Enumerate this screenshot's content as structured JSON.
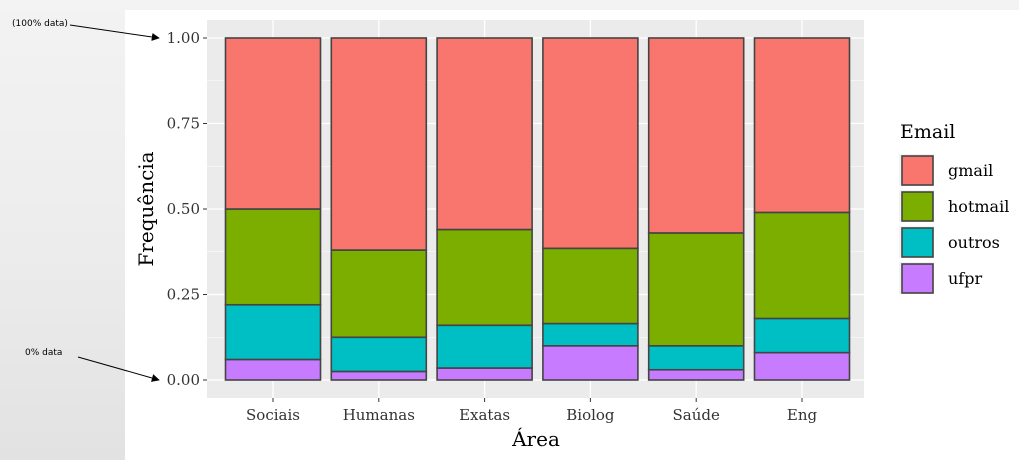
{
  "chart_data": {
    "type": "bar",
    "stacked": true,
    "categories": [
      "Sociais",
      "Humanas",
      "Exatas",
      "Biolog",
      "Saúde",
      "Eng"
    ],
    "series": [
      {
        "name": "ufpr",
        "color": "#C77CFF",
        "values": [
          0.06,
          0.025,
          0.035,
          0.1,
          0.03,
          0.08
        ]
      },
      {
        "name": "outros",
        "color": "#00BFC4",
        "values": [
          0.16,
          0.1,
          0.125,
          0.065,
          0.07,
          0.1
        ]
      },
      {
        "name": "hotmail",
        "color": "#7CAE00",
        "values": [
          0.28,
          0.255,
          0.28,
          0.22,
          0.33,
          0.31
        ]
      },
      {
        "name": "gmail",
        "color": "#F8766D",
        "values": [
          0.5,
          0.62,
          0.56,
          0.615,
          0.57,
          0.51
        ]
      }
    ],
    "ylim": [
      0,
      1
    ],
    "yticks": [
      "0.00",
      "0.25",
      "0.50",
      "0.75",
      "1.00"
    ],
    "xlabel": "Área",
    "ylabel": "Frequência",
    "legend": {
      "title": "Email",
      "position": "right",
      "order": [
        "gmail",
        "hotmail",
        "outros",
        "ufpr"
      ]
    },
    "panel_background": "#EBEBEB",
    "grid": true,
    "annotations": [
      {
        "text": "(100% data)",
        "points_to": 1.0
      },
      {
        "text": "0% data",
        "points_to": 0.0
      }
    ]
  }
}
